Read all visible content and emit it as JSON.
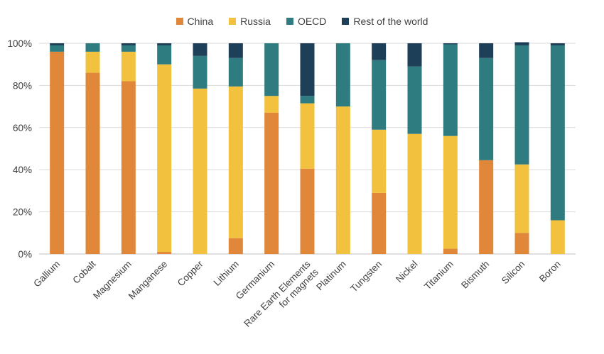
{
  "chart_data": {
    "type": "bar",
    "stacked": true,
    "title": "",
    "xlabel": "",
    "ylabel": "",
    "ylim": [
      0,
      100
    ],
    "yticks": [
      0,
      20,
      40,
      60,
      80,
      100
    ],
    "ytick_labels": [
      "0%",
      "20%",
      "40%",
      "60%",
      "80%",
      "100%"
    ],
    "grid": true,
    "legend_position": "top-center",
    "categories": [
      "Gallium",
      "Cobalt",
      "Magnesium",
      "Manganese",
      "Copper",
      "Lithium",
      "Germanium",
      "Rare Earth Elements for magnets",
      "Platinum",
      "Tungsten",
      "Nickel",
      "Titanium",
      "Bismuth",
      "Silicon",
      "Boron"
    ],
    "category_label_lines": [
      [
        "Gallium"
      ],
      [
        "Cobalt"
      ],
      [
        "Magnesium"
      ],
      [
        "Manganese"
      ],
      [
        "Copper"
      ],
      [
        "Lithium"
      ],
      [
        "Germanium"
      ],
      [
        "Rare Earth Elements",
        "for magnets"
      ],
      [
        "Platinum"
      ],
      [
        "Tungsten"
      ],
      [
        "Nickel"
      ],
      [
        "Titanium"
      ],
      [
        "Bismuth"
      ],
      [
        "Silicon"
      ],
      [
        "Boron"
      ]
    ],
    "series": [
      {
        "name": "China",
        "color": "#E0873A",
        "values": [
          96,
          86,
          82,
          1,
          0,
          7.5,
          67,
          40.5,
          0,
          29,
          0,
          2.5,
          44.5,
          10,
          0
        ]
      },
      {
        "name": "Russia",
        "color": "#F2C13E",
        "values": [
          0,
          10,
          14,
          89,
          78.5,
          72,
          8,
          31,
          70,
          30,
          57,
          53.5,
          0,
          32.5,
          16
        ]
      },
      {
        "name": "OECD",
        "color": "#2E7B80",
        "values": [
          3,
          4,
          3,
          9,
          15.5,
          13.5,
          25,
          3.5,
          30,
          33,
          32,
          43.5,
          48.5,
          56.5,
          83
        ]
      },
      {
        "name": "Rest of the world",
        "color": "#1E3F58",
        "values": [
          1,
          0,
          1,
          1,
          6,
          7,
          0,
          25,
          0,
          8,
          11,
          0.5,
          7,
          1.5,
          1
        ]
      }
    ]
  }
}
